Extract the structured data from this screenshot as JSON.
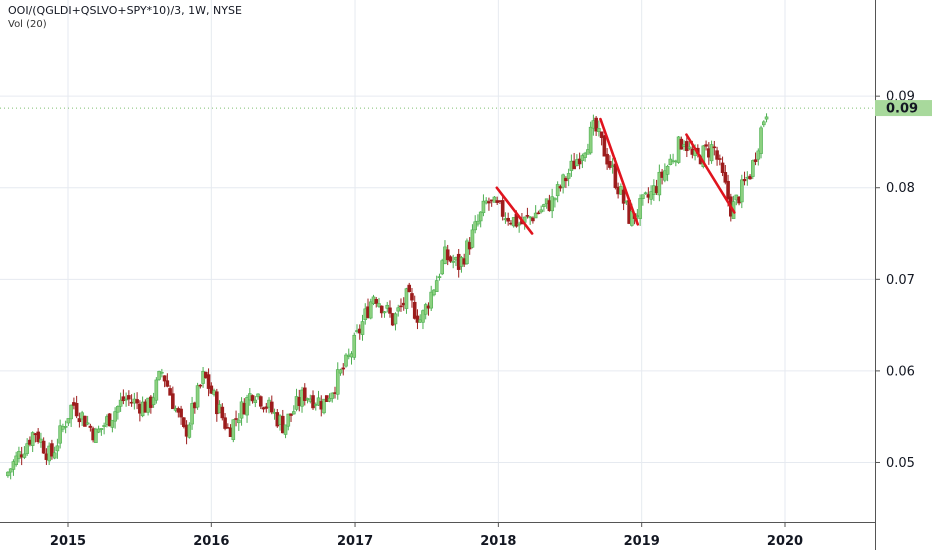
{
  "legend": {
    "symbol": "OOI/(QGLDI+QSLVO+SPY*10)/3, 1W, NYSE",
    "indicator": "Vol (20)"
  },
  "colors": {
    "up": "#4caf50",
    "up_fill": "#8bd07f",
    "down": "#9c1c1c",
    "trend": "#e0141e",
    "grid": "#e6eaf0",
    "last_bg": "#a8d99c",
    "last_line": "#7cbf6e",
    "axis": "#555555"
  },
  "chart_data": {
    "type": "candlestick",
    "x_axis": {
      "type": "date",
      "ticks": [
        "2015",
        "2016",
        "2017",
        "2018",
        "2019",
        "2020"
      ]
    },
    "y_axis": {
      "ticks": [
        "0.05",
        "0.06",
        "0.07",
        "0.08",
        "0.09"
      ],
      "min": 0.0435,
      "max": 0.1005
    },
    "last_value": {
      "label": "0.09",
      "value": 0.0887
    },
    "grid": true,
    "price_path": [
      {
        "date": "2014-08-01",
        "value": 0.0485
      },
      {
        "date": "2014-10-15",
        "value": 0.0535
      },
      {
        "date": "2014-11-25",
        "value": 0.0505
      },
      {
        "date": "2015-01-20",
        "value": 0.0565
      },
      {
        "date": "2015-03-20",
        "value": 0.053
      },
      {
        "date": "2015-06-01",
        "value": 0.057
      },
      {
        "date": "2015-08-01",
        "value": 0.056
      },
      {
        "date": "2015-09-05",
        "value": 0.06
      },
      {
        "date": "2015-11-01",
        "value": 0.053
      },
      {
        "date": "2015-12-20",
        "value": 0.0595
      },
      {
        "date": "2016-02-20",
        "value": 0.0535
      },
      {
        "date": "2016-04-25",
        "value": 0.058
      },
      {
        "date": "2016-07-10",
        "value": 0.054
      },
      {
        "date": "2016-09-01",
        "value": 0.0575
      },
      {
        "date": "2016-10-20",
        "value": 0.0565
      },
      {
        "date": "2016-12-20",
        "value": 0.061
      },
      {
        "date": "2017-02-25",
        "value": 0.0685
      },
      {
        "date": "2017-04-15",
        "value": 0.0655
      },
      {
        "date": "2017-05-20",
        "value": 0.068
      },
      {
        "date": "2017-06-25",
        "value": 0.0655
      },
      {
        "date": "2017-08-25",
        "value": 0.0725
      },
      {
        "date": "2017-10-01",
        "value": 0.0715
      },
      {
        "date": "2017-12-10",
        "value": 0.0785
      },
      {
        "date": "2018-03-05",
        "value": 0.076
      },
      {
        "date": "2018-05-25",
        "value": 0.0785
      },
      {
        "date": "2018-09-10",
        "value": 0.0865
      },
      {
        "date": "2018-10-15",
        "value": 0.083
      },
      {
        "date": "2018-12-10",
        "value": 0.0765
      },
      {
        "date": "2019-02-05",
        "value": 0.0795
      },
      {
        "date": "2019-04-25",
        "value": 0.0855
      },
      {
        "date": "2019-05-20",
        "value": 0.083
      },
      {
        "date": "2019-07-10",
        "value": 0.0845
      },
      {
        "date": "2019-08-25",
        "value": 0.0775
      },
      {
        "date": "2019-10-15",
        "value": 0.082
      },
      {
        "date": "2019-11-20",
        "value": 0.0885
      }
    ],
    "trendlines": [
      {
        "from": {
          "date": "2017-12-28",
          "value": 0.08
        },
        "to": {
          "date": "2018-03-28",
          "value": 0.075
        }
      },
      {
        "from": {
          "date": "2018-09-18",
          "value": 0.0875
        },
        "to": {
          "date": "2018-12-22",
          "value": 0.076
        }
      },
      {
        "from": {
          "date": "2019-04-25",
          "value": 0.0858
        },
        "to": {
          "date": "2019-08-25",
          "value": 0.0773
        }
      }
    ]
  }
}
